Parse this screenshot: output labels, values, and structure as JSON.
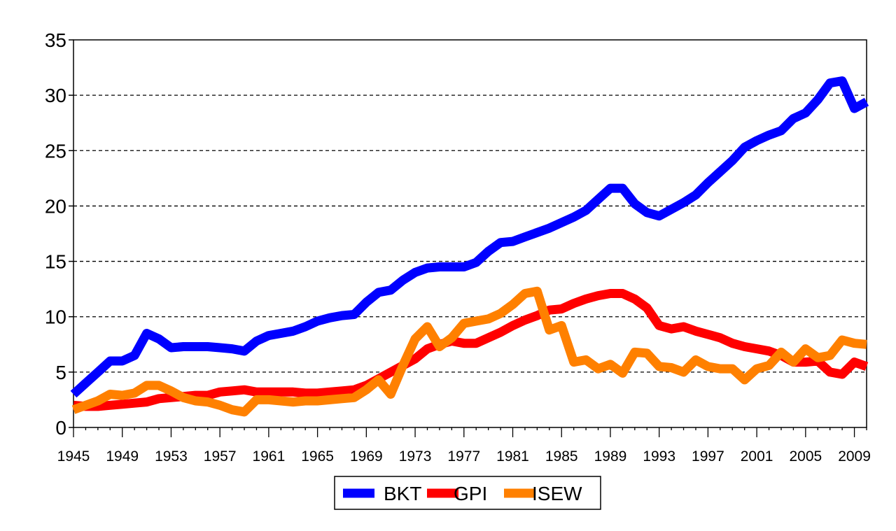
{
  "chart_data": {
    "type": "line",
    "title": "",
    "xlabel": "",
    "ylabel": "",
    "xlim": [
      1945,
      2010
    ],
    "ylim": [
      0,
      35
    ],
    "yticks": [
      0,
      5,
      10,
      15,
      20,
      25,
      30,
      35
    ],
    "xtick_labels": [
      "1945",
      "1949",
      "1953",
      "1957",
      "1961",
      "1965",
      "1969",
      "1973",
      "1977",
      "1981",
      "1985",
      "1989",
      "1993",
      "1997",
      "2001",
      "2005",
      "2009"
    ],
    "grid": "horizontal dashed",
    "legend_position": "bottom",
    "x": [
      1945,
      1946,
      1947,
      1948,
      1949,
      1950,
      1951,
      1952,
      1953,
      1954,
      1955,
      1956,
      1957,
      1958,
      1959,
      1960,
      1961,
      1962,
      1963,
      1964,
      1965,
      1966,
      1967,
      1968,
      1969,
      1970,
      1971,
      1972,
      1973,
      1974,
      1975,
      1976,
      1977,
      1978,
      1979,
      1980,
      1981,
      1982,
      1983,
      1984,
      1985,
      1986,
      1987,
      1988,
      1989,
      1990,
      1991,
      1992,
      1993,
      1994,
      1995,
      1996,
      1997,
      1998,
      1999,
      2000,
      2001,
      2002,
      2003,
      2004,
      2005,
      2006,
      2007,
      2008,
      2009,
      2010
    ],
    "series": [
      {
        "name": "BKT",
        "color": "#0000ff",
        "values": [
          3,
          4,
          5,
          6,
          6,
          6.5,
          8.5,
          8,
          7.2,
          7.3,
          7.3,
          7.3,
          7.2,
          7.1,
          6.9,
          7.8,
          8.3,
          8.5,
          8.7,
          9.1,
          9.6,
          9.9,
          10.1,
          10.2,
          11.3,
          12.2,
          12.4,
          13.3,
          14,
          14.4,
          14.5,
          14.5,
          14.5,
          14.9,
          15.9,
          16.7,
          16.8,
          17.2,
          17.6,
          18,
          18.5,
          19,
          19.6,
          20.6,
          21.6,
          21.6,
          20.2,
          19.4,
          19.1,
          19.7,
          20.3,
          21,
          22.1,
          23.1,
          24.1,
          25.3,
          25.9,
          26.4,
          26.8,
          27.9,
          28.4,
          29.6,
          31.1,
          31.3,
          28.8,
          29.4
        ]
      },
      {
        "name": "GPI",
        "color": "#ff0000",
        "values": [
          2,
          1.9,
          1.9,
          2,
          2.1,
          2.2,
          2.3,
          2.6,
          2.7,
          2.8,
          2.9,
          2.9,
          3.2,
          3.3,
          3.4,
          3.2,
          3.2,
          3.2,
          3.2,
          3.1,
          3.1,
          3.2,
          3.3,
          3.4,
          3.8,
          4.4,
          5,
          5.6,
          6.2,
          7.1,
          7.5,
          7.8,
          7.6,
          7.6,
          8.1,
          8.6,
          9.2,
          9.7,
          10.1,
          10.6,
          10.7,
          11.2,
          11.6,
          11.9,
          12.1,
          12.1,
          11.6,
          10.8,
          9.2,
          8.9,
          9.1,
          8.7,
          8.4,
          8.1,
          7.6,
          7.3,
          7.1,
          6.9,
          6.5,
          5.9,
          5.9,
          6.0,
          5.0,
          4.8,
          5.9,
          5.5
        ]
      },
      {
        "name": "ISEW",
        "color": "#ff8000",
        "values": [
          1.6,
          2,
          2.4,
          3,
          2.9,
          3.1,
          3.8,
          3.8,
          3.3,
          2.7,
          2.4,
          2.3,
          2.0,
          1.6,
          1.4,
          2.5,
          2.5,
          2.4,
          2.3,
          2.4,
          2.4,
          2.5,
          2.6,
          2.7,
          3.4,
          4.3,
          3.0,
          5.6,
          8.0,
          9.1,
          7.3,
          8.1,
          9.4,
          9.6,
          9.8,
          10.3,
          11.1,
          12.1,
          12.3,
          8.8,
          9.2,
          5.9,
          6.1,
          5.3,
          5.7,
          4.9,
          6.8,
          6.7,
          5.5,
          5.4,
          5.0,
          6.1,
          5.5,
          5.3,
          5.3,
          4.3,
          5.3,
          5.6,
          6.8,
          5.9,
          7.1,
          6.3,
          6.5,
          7.9,
          7.6,
          7.5
        ]
      }
    ]
  }
}
